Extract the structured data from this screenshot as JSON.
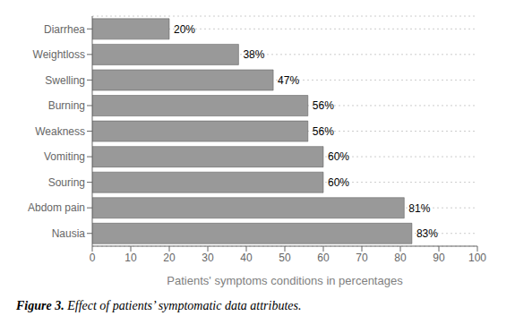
{
  "chart_data": {
    "type": "bar",
    "orientation": "horizontal",
    "categories": [
      "Nausia",
      "Abdom pain",
      "Souring",
      "Vomiting",
      "Weakness",
      "Burning",
      "Swelling",
      "Weightloss",
      "Diarrhea"
    ],
    "values": [
      83,
      81,
      60,
      60,
      56,
      56,
      47,
      38,
      20
    ],
    "value_labels": [
      "83%",
      "81%",
      "60%",
      "60%",
      "56%",
      "56%",
      "47%",
      "38%",
      "20%"
    ],
    "data_labels": true,
    "color": "#999999",
    "x_label": "Patients' symptoms conditions in percentages",
    "xlim": [
      0,
      100
    ],
    "xticks": [
      0,
      10,
      20,
      30,
      40,
      50,
      60,
      70,
      80,
      90,
      100
    ],
    "grid": true,
    "annotations": [
      "Figure 3.",
      "Effect of patients’ symptomatic data attributes."
    ]
  }
}
